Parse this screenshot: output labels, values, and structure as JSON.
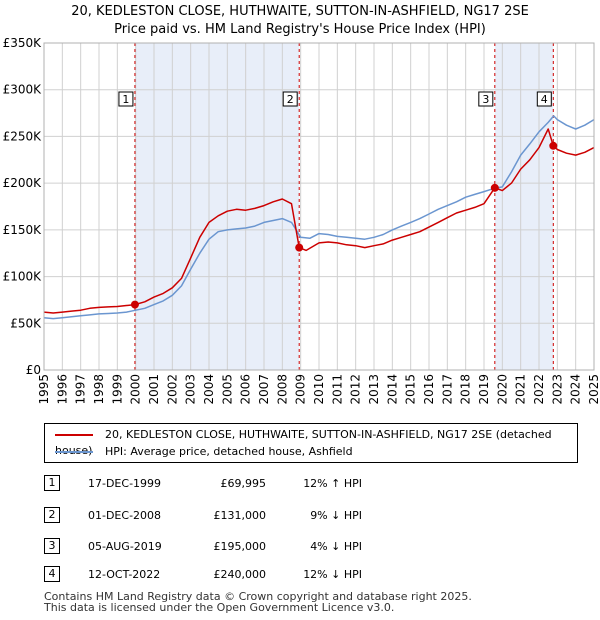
{
  "title_line1": "20, KEDLESTON CLOSE, HUTHWAITE, SUTTON-IN-ASHFIELD, NG17 2SE",
  "title_line2": "Price paid vs. HM Land Registry's House Price Index (HPI)",
  "chart_data": {
    "type": "line",
    "title": "20, KEDLESTON CLOSE, HUTHWAITE, SUTTON-IN-ASHFIELD, NG17 2SE",
    "subtitle": "Price paid vs. HM Land Registry's House Price Index (HPI)",
    "xlim": [
      1995,
      2025
    ],
    "ylim": [
      0,
      350000
    ],
    "y_ticks": [
      {
        "value": 0,
        "label": "£0"
      },
      {
        "value": 50000,
        "label": "£50K"
      },
      {
        "value": 100000,
        "label": "£100K"
      },
      {
        "value": 150000,
        "label": "£150K"
      },
      {
        "value": 200000,
        "label": "£200K"
      },
      {
        "value": 250000,
        "label": "£250K"
      },
      {
        "value": 300000,
        "label": "£300K"
      },
      {
        "value": 350000,
        "label": "£350K"
      }
    ],
    "x_ticks": [
      "1995",
      "1996",
      "1997",
      "1998",
      "1999",
      "2000",
      "2001",
      "2002",
      "2003",
      "2004",
      "2005",
      "2006",
      "2007",
      "2008",
      "2009",
      "2010",
      "2011",
      "2012",
      "2013",
      "2014",
      "2015",
      "2016",
      "2017",
      "2018",
      "2019",
      "2020",
      "2021",
      "2022",
      "2023",
      "2024",
      "2025"
    ],
    "grid": true,
    "shaded_periods": [
      [
        1999.96,
        2008.92
      ],
      [
        2019.59,
        2022.78
      ]
    ],
    "series": [
      {
        "name": "20, KEDLESTON CLOSE, HUTHWAITE, SUTTON-IN-ASHFIELD, NG17 2SE (detached house)",
        "color": "#cc0000",
        "x": [
          1995,
          1995.5,
          1996,
          1996.5,
          1997,
          1997.5,
          1998,
          1998.5,
          1999,
          1999.5,
          1999.96,
          2000.5,
          2001,
          2001.5,
          2002,
          2002.5,
          2003,
          2003.5,
          2004,
          2004.5,
          2005,
          2005.5,
          2006,
          2006.5,
          2007,
          2007.5,
          2008,
          2008.5,
          2008.92,
          2009.3,
          2010,
          2010.5,
          2011,
          2011.5,
          2012,
          2012.5,
          2013,
          2013.5,
          2014,
          2014.5,
          2015,
          2015.5,
          2016,
          2016.5,
          2017,
          2017.5,
          2018,
          2018.5,
          2019,
          2019.59,
          2020,
          2020.5,
          2021,
          2021.5,
          2022,
          2022.5,
          2022.78,
          2023,
          2023.5,
          2024,
          2024.5,
          2025
        ],
        "values": [
          62000,
          61000,
          62000,
          63000,
          64000,
          66000,
          67000,
          67500,
          68000,
          69000,
          69995,
          73000,
          78000,
          82000,
          88000,
          98000,
          120000,
          142000,
          158000,
          165000,
          170000,
          172000,
          171000,
          173000,
          176000,
          180000,
          183000,
          178000,
          131000,
          128000,
          136000,
          137000,
          136000,
          134000,
          133000,
          131000,
          133000,
          135000,
          139000,
          142000,
          145000,
          148000,
          153000,
          158000,
          163000,
          168000,
          171000,
          174000,
          178000,
          195000,
          192000,
          200000,
          215000,
          225000,
          238000,
          258000,
          240000,
          236000,
          232000,
          230000,
          233000,
          238000
        ]
      },
      {
        "name": "HPI: Average price, detached house, Ashfield",
        "color": "#6b96d0",
        "x": [
          1995,
          1995.5,
          1996,
          1996.5,
          1997,
          1997.5,
          1998,
          1998.5,
          1999,
          1999.5,
          2000,
          2000.5,
          2001,
          2001.5,
          2002,
          2002.5,
          2003,
          2003.5,
          2004,
          2004.5,
          2005,
          2005.5,
          2006,
          2006.5,
          2007,
          2007.5,
          2008,
          2008.5,
          2009,
          2009.5,
          2010,
          2010.5,
          2011,
          2011.5,
          2012,
          2012.5,
          2013,
          2013.5,
          2014,
          2014.5,
          2015,
          2015.5,
          2016,
          2016.5,
          2017,
          2017.5,
          2018,
          2018.5,
          2019,
          2019.5,
          2020,
          2020.5,
          2021,
          2021.5,
          2022,
          2022.5,
          2022.8,
          2023,
          2023.5,
          2024,
          2024.5,
          2025
        ],
        "values": [
          56000,
          55000,
          56000,
          57000,
          58000,
          59000,
          60000,
          60500,
          61000,
          62000,
          64000,
          66000,
          70000,
          74000,
          80000,
          90000,
          108000,
          125000,
          140000,
          148000,
          150000,
          151000,
          152000,
          154000,
          158000,
          160000,
          162000,
          158000,
          142000,
          141000,
          146000,
          145000,
          143000,
          142000,
          141000,
          140000,
          142000,
          145000,
          150000,
          154000,
          158000,
          162000,
          167000,
          172000,
          176000,
          180000,
          185000,
          188000,
          191000,
          194000,
          196000,
          212000,
          230000,
          242000,
          255000,
          265000,
          272000,
          268000,
          262000,
          258000,
          262000,
          268000
        ]
      }
    ],
    "sales": [
      {
        "label": "1",
        "date": "17-DEC-1999",
        "x": 1999.96,
        "price": 69995,
        "price_label": "£69,995",
        "hpi_label": "12% ↑ HPI"
      },
      {
        "label": "2",
        "date": "01-DEC-2008",
        "x": 2008.92,
        "price": 131000,
        "price_label": "£131,000",
        "hpi_label": "9% ↓ HPI"
      },
      {
        "label": "3",
        "date": "05-AUG-2019",
        "x": 2019.59,
        "price": 195000,
        "price_label": "£195,000",
        "hpi_label": "4% ↓ HPI"
      },
      {
        "label": "4",
        "date": "12-OCT-2022",
        "x": 2022.78,
        "price": 240000,
        "price_label": "£240,000",
        "hpi_label": "12% ↓ HPI"
      }
    ]
  },
  "legend": {
    "property_label": "20, KEDLESTON CLOSE, HUTHWAITE, SUTTON-IN-ASHFIELD, NG17 2SE (detached house)",
    "hpi_label": "HPI: Average price, detached house, Ashfield",
    "property_color": "#cc0000",
    "hpi_color": "#6b96d0"
  },
  "footer": {
    "line1": "Contains HM Land Registry data © Crown copyright and database right 2025.",
    "line2": "This data is licensed under the Open Government Licence v3.0."
  }
}
